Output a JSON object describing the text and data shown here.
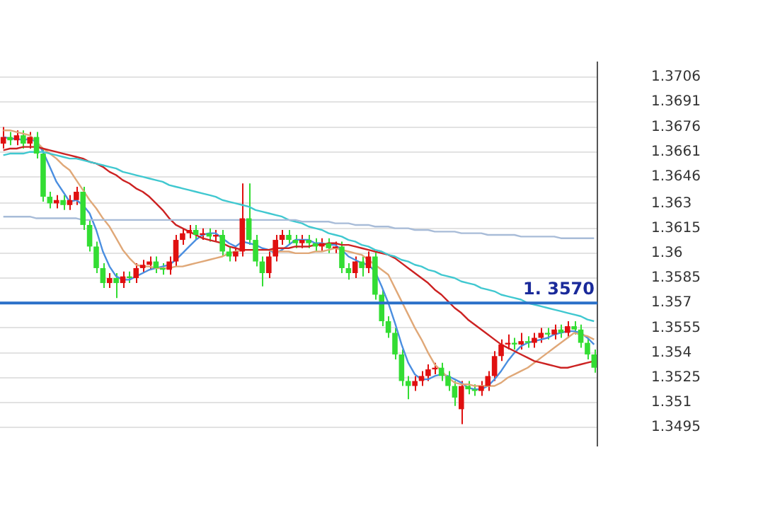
{
  "chart_data": {
    "type": "candlestick",
    "categories": [
      null,
      null,
      null,
      null,
      null,
      null,
      null,
      null,
      null,
      null,
      null,
      null,
      null,
      null,
      null,
      null,
      null,
      null,
      null,
      null,
      null,
      null,
      null,
      null,
      null,
      null,
      null,
      null,
      null,
      null,
      null,
      null,
      null,
      null,
      null,
      null,
      null,
      null,
      null,
      null,
      null,
      null,
      null,
      null,
      null,
      null,
      null,
      null,
      null,
      null,
      null,
      null,
      null,
      null,
      null,
      null,
      null,
      null,
      null,
      null,
      null,
      null,
      null,
      null,
      null,
      null,
      null,
      null,
      null,
      null,
      null,
      null,
      null,
      null,
      null,
      null,
      null,
      null,
      null,
      null,
      null,
      null,
      null,
      null,
      null,
      null,
      null,
      null,
      null,
      null
    ],
    "series": [
      {
        "type": "line",
        "color": "#a8bcd8",
        "values": [
          1.3622,
          1.3622,
          1.3622,
          1.3622,
          1.3622,
          1.3621,
          1.3621,
          1.3621,
          1.3621,
          1.3621,
          1.3621,
          1.3621,
          1.362,
          1.362,
          1.362,
          1.362,
          1.362,
          1.362,
          1.362,
          1.362,
          1.362,
          1.362,
          1.362,
          1.362,
          1.362,
          1.362,
          1.362,
          1.362,
          1.362,
          1.362,
          1.362,
          1.362,
          1.362,
          1.362,
          1.362,
          1.362,
          1.362,
          1.362,
          1.362,
          1.362,
          1.362,
          1.362,
          1.362,
          1.362,
          1.362,
          1.3619,
          1.3619,
          1.3619,
          1.3619,
          1.3619,
          1.3618,
          1.3618,
          1.3618,
          1.3617,
          1.3617,
          1.3617,
          1.3616,
          1.3616,
          1.3616,
          1.3615,
          1.3615,
          1.3615,
          1.3614,
          1.3614,
          1.3614,
          1.3613,
          1.3613,
          1.3613,
          1.3613,
          1.3612,
          1.3612,
          1.3612,
          1.3612,
          1.3611,
          1.3611,
          1.3611,
          1.3611,
          1.3611,
          1.361,
          1.361,
          1.361,
          1.361,
          1.361,
          1.361,
          1.3609,
          1.3609,
          1.3609,
          1.3609,
          1.3609,
          1.3609
        ]
      },
      {
        "type": "line",
        "color": "#40c8d0",
        "values": [
          1.3659,
          1.366,
          1.366,
          1.366,
          1.3661,
          1.3661,
          1.3661,
          1.366,
          1.3659,
          1.3658,
          1.3657,
          1.3657,
          1.3656,
          1.3655,
          1.3654,
          1.3653,
          1.3652,
          1.3651,
          1.3649,
          1.3648,
          1.3647,
          1.3646,
          1.3645,
          1.3644,
          1.3643,
          1.3641,
          1.364,
          1.3639,
          1.3638,
          1.3637,
          1.3636,
          1.3635,
          1.3634,
          1.3632,
          1.3631,
          1.363,
          1.3629,
          1.3628,
          1.3626,
          1.3625,
          1.3624,
          1.3623,
          1.3622,
          1.362,
          1.3619,
          1.3618,
          1.3616,
          1.3615,
          1.3614,
          1.3612,
          1.3611,
          1.361,
          1.3608,
          1.3607,
          1.3605,
          1.3604,
          1.3602,
          1.3601,
          1.3599,
          1.3598,
          1.3596,
          1.3595,
          1.3593,
          1.3592,
          1.359,
          1.3589,
          1.3587,
          1.3586,
          1.3585,
          1.3583,
          1.3582,
          1.3581,
          1.3579,
          1.3578,
          1.3577,
          1.3575,
          1.3574,
          1.3573,
          1.3572,
          1.357,
          1.3569,
          1.3568,
          1.3567,
          1.3566,
          1.3565,
          1.3564,
          1.3563,
          1.3562,
          1.356,
          1.3559
        ]
      },
      {
        "type": "line",
        "color": "#cc2222",
        "values": [
          1.3662,
          1.3663,
          1.3663,
          1.3664,
          1.3664,
          1.3664,
          1.3663,
          1.3662,
          1.3661,
          1.366,
          1.3659,
          1.3658,
          1.3657,
          1.3655,
          1.3654,
          1.3652,
          1.3649,
          1.3647,
          1.3644,
          1.3642,
          1.3639,
          1.3637,
          1.3634,
          1.363,
          1.3626,
          1.3621,
          1.3617,
          1.3615,
          1.3613,
          1.3611,
          1.3609,
          1.3608,
          1.3607,
          1.3606,
          1.3604,
          1.3603,
          1.3602,
          1.3602,
          1.3602,
          1.3602,
          1.3602,
          1.3603,
          1.3603,
          1.3603,
          1.3604,
          1.3604,
          1.3604,
          1.3605,
          1.3605,
          1.3606,
          1.3606,
          1.3605,
          1.3605,
          1.3604,
          1.3603,
          1.3602,
          1.3601,
          1.36,
          1.3599,
          1.3597,
          1.3594,
          1.3591,
          1.3588,
          1.3585,
          1.3582,
          1.3578,
          1.3575,
          1.3571,
          1.3567,
          1.3564,
          1.356,
          1.3557,
          1.3554,
          1.3551,
          1.3548,
          1.3545,
          1.3543,
          1.3541,
          1.3539,
          1.3537,
          1.3535,
          1.3534,
          1.3533,
          1.3532,
          1.3531,
          1.3531,
          1.3532,
          1.3533,
          1.3534,
          1.3535
        ]
      },
      {
        "type": "line",
        "color": "#e0a878",
        "values": [
          1.3674,
          1.3674,
          1.3673,
          1.3672,
          1.3671,
          1.3667,
          1.3663,
          1.366,
          1.3657,
          1.3653,
          1.365,
          1.3644,
          1.3638,
          1.3632,
          1.3627,
          1.3621,
          1.3616,
          1.3609,
          1.3602,
          1.3597,
          1.3593,
          1.3592,
          1.3592,
          1.3591,
          1.3591,
          1.3591,
          1.3592,
          1.3592,
          1.3593,
          1.3594,
          1.3595,
          1.3596,
          1.3597,
          1.3598,
          1.36,
          1.3601,
          1.3602,
          1.3602,
          1.3602,
          1.3602,
          1.3602,
          1.3601,
          1.3601,
          1.3601,
          1.36,
          1.36,
          1.36,
          1.3601,
          1.3601,
          1.3602,
          1.3603,
          1.3602,
          1.3601,
          1.36,
          1.3599,
          1.3596,
          1.3593,
          1.359,
          1.3587,
          1.3579,
          1.3571,
          1.3563,
          1.3555,
          1.3548,
          1.354,
          1.3533,
          1.3529,
          1.3525,
          1.3522,
          1.3521,
          1.3521,
          1.352,
          1.352,
          1.352,
          1.352,
          1.3522,
          1.3525,
          1.3527,
          1.3529,
          1.3531,
          1.3534,
          1.3537,
          1.354,
          1.3543,
          1.3546,
          1.3549,
          1.3552,
          1.3551,
          1.355,
          1.3548
        ]
      },
      {
        "type": "line",
        "color": "#4a8ee0",
        "values": [
          1.367,
          1.3669,
          1.3669,
          1.3668,
          1.3669,
          1.3667,
          1.3661,
          1.3652,
          1.3643,
          1.3637,
          1.3631,
          1.3632,
          1.3629,
          1.3624,
          1.3614,
          1.3601,
          1.3592,
          1.3586,
          1.3584,
          1.3584,
          1.3586,
          1.3588,
          1.359,
          1.3591,
          1.3592,
          1.3593,
          1.3596,
          1.36,
          1.3604,
          1.3608,
          1.3611,
          1.3612,
          1.3612,
          1.3609,
          1.3606,
          1.3604,
          1.3607,
          1.3606,
          1.3605,
          1.3603,
          1.3602,
          1.36,
          1.3602,
          1.3605,
          1.3608,
          1.3608,
          1.3608,
          1.3606,
          1.3606,
          1.3605,
          1.3605,
          1.3602,
          1.3598,
          1.3596,
          1.3594,
          1.3593,
          1.3589,
          1.358,
          1.357,
          1.3558,
          1.3545,
          1.3534,
          1.3527,
          1.3524,
          1.3524,
          1.3526,
          1.3527,
          1.3526,
          1.3524,
          1.3522,
          1.3519,
          1.3518,
          1.3518,
          1.352,
          1.3524,
          1.3529,
          1.3535,
          1.354,
          1.3544,
          1.3546,
          1.3547,
          1.3548,
          1.3549,
          1.3551,
          1.3552,
          1.3553,
          1.3553,
          1.3552,
          1.3549,
          1.3545
        ]
      },
      {
        "type": "candlestick",
        "ohlc": [
          [
            1.3666,
            1.3676,
            1.3663,
            1.367
          ],
          [
            1.367,
            1.3673,
            1.3665,
            1.3668
          ],
          [
            1.3668,
            1.3674,
            1.3665,
            1.3671
          ],
          [
            1.3671,
            1.3674,
            1.3663,
            1.3666
          ],
          [
            1.3666,
            1.3673,
            1.3663,
            1.367
          ],
          [
            1.367,
            1.3673,
            1.3657,
            1.366
          ],
          [
            1.366,
            1.3663,
            1.3631,
            1.3634
          ],
          [
            1.3634,
            1.3637,
            1.3627,
            1.363
          ],
          [
            1.363,
            1.3635,
            1.3627,
            1.3632
          ],
          [
            1.3632,
            1.3635,
            1.3626,
            1.3629
          ],
          [
            1.3629,
            1.3635,
            1.3626,
            1.3632
          ],
          [
            1.3632,
            1.364,
            1.3629,
            1.3637
          ],
          [
            1.3637,
            1.364,
            1.3614,
            1.3617
          ],
          [
            1.3617,
            1.362,
            1.3601,
            1.3604
          ],
          [
            1.3604,
            1.3607,
            1.3588,
            1.3591
          ],
          [
            1.3591,
            1.3594,
            1.3579,
            1.3582
          ],
          [
            1.3582,
            1.3588,
            1.3579,
            1.3585
          ],
          [
            1.3585,
            1.3588,
            1.3573,
            1.3582
          ],
          [
            1.3582,
            1.3589,
            1.3579,
            1.3586
          ],
          [
            1.3586,
            1.3589,
            1.3582,
            1.3585
          ],
          [
            1.3585,
            1.3594,
            1.3582,
            1.3591
          ],
          [
            1.3591,
            1.3596,
            1.3588,
            1.3593
          ],
          [
            1.3593,
            1.3598,
            1.359,
            1.3595
          ],
          [
            1.3595,
            1.3598,
            1.3588,
            1.3591
          ],
          [
            1.3591,
            1.3594,
            1.3587,
            1.359
          ],
          [
            1.359,
            1.3598,
            1.3587,
            1.3595
          ],
          [
            1.3595,
            1.3611,
            1.3592,
            1.3608
          ],
          [
            1.3608,
            1.3615,
            1.3605,
            1.3612
          ],
          [
            1.3612,
            1.3617,
            1.3609,
            1.3614
          ],
          [
            1.3614,
            1.3617,
            1.3608,
            1.3611
          ],
          [
            1.3611,
            1.3615,
            1.3608,
            1.3612
          ],
          [
            1.3612,
            1.3615,
            1.3607,
            1.361
          ],
          [
            1.361,
            1.3614,
            1.3607,
            1.3611
          ],
          [
            1.3611,
            1.3614,
            1.3598,
            1.3601
          ],
          [
            1.3601,
            1.3604,
            1.3595,
            1.3598
          ],
          [
            1.3598,
            1.3604,
            1.3595,
            1.3601
          ],
          [
            1.3601,
            1.3642,
            1.3598,
            1.3621
          ],
          [
            1.3621,
            1.3642,
            1.3605,
            1.3608
          ],
          [
            1.3608,
            1.3611,
            1.3592,
            1.3595
          ],
          [
            1.3595,
            1.3598,
            1.358,
            1.3588
          ],
          [
            1.3588,
            1.3601,
            1.3585,
            1.3598
          ],
          [
            1.3598,
            1.3611,
            1.3595,
            1.3608
          ],
          [
            1.3608,
            1.3614,
            1.3605,
            1.3611
          ],
          [
            1.3611,
            1.3614,
            1.3605,
            1.3608
          ],
          [
            1.3608,
            1.3611,
            1.3603,
            1.3606
          ],
          [
            1.3606,
            1.3611,
            1.3603,
            1.3608
          ],
          [
            1.3608,
            1.3611,
            1.3603,
            1.3606
          ],
          [
            1.3606,
            1.3609,
            1.3601,
            1.3604
          ],
          [
            1.3604,
            1.3609,
            1.3601,
            1.3606
          ],
          [
            1.3606,
            1.3609,
            1.36,
            1.3603
          ],
          [
            1.3603,
            1.3607,
            1.36,
            1.3604
          ],
          [
            1.3604,
            1.3607,
            1.3588,
            1.3591
          ],
          [
            1.3591,
            1.3594,
            1.3584,
            1.3588
          ],
          [
            1.3588,
            1.3598,
            1.3585,
            1.3595
          ],
          [
            1.3595,
            1.3598,
            1.3586,
            1.3591
          ],
          [
            1.3591,
            1.3601,
            1.3588,
            1.3598
          ],
          [
            1.3598,
            1.3601,
            1.3572,
            1.3575
          ],
          [
            1.3575,
            1.3578,
            1.3556,
            1.3559
          ],
          [
            1.3559,
            1.3562,
            1.3549,
            1.3552
          ],
          [
            1.3552,
            1.3555,
            1.3536,
            1.3539
          ],
          [
            1.3539,
            1.3542,
            1.352,
            1.3523
          ],
          [
            1.3523,
            1.3526,
            1.3512,
            1.352
          ],
          [
            1.352,
            1.3526,
            1.3517,
            1.3523
          ],
          [
            1.3523,
            1.3529,
            1.352,
            1.3526
          ],
          [
            1.3526,
            1.3533,
            1.3523,
            1.353
          ],
          [
            1.353,
            1.3534,
            1.3527,
            1.3531
          ],
          [
            1.3531,
            1.3534,
            1.3523,
            1.3526
          ],
          [
            1.3526,
            1.3529,
            1.3517,
            1.352
          ],
          [
            1.352,
            1.3523,
            1.3508,
            1.3513
          ],
          [
            1.3506,
            1.3523,
            1.3497,
            1.352
          ],
          [
            1.352,
            1.3523,
            1.3515,
            1.3518
          ],
          [
            1.3518,
            1.3521,
            1.3514,
            1.3517
          ],
          [
            1.3517,
            1.3523,
            1.3514,
            1.352
          ],
          [
            1.352,
            1.3529,
            1.3517,
            1.3526
          ],
          [
            1.3526,
            1.3541,
            1.3523,
            1.3538
          ],
          [
            1.3538,
            1.3548,
            1.3535,
            1.3545
          ],
          [
            1.3545,
            1.3551,
            1.3542,
            1.3546
          ],
          [
            1.3546,
            1.3549,
            1.3542,
            1.3545
          ],
          [
            1.3545,
            1.3552,
            1.3542,
            1.3547
          ],
          [
            1.3547,
            1.355,
            1.3543,
            1.3546
          ],
          [
            1.3546,
            1.3552,
            1.3543,
            1.3549
          ],
          [
            1.3549,
            1.3555,
            1.3546,
            1.3552
          ],
          [
            1.3552,
            1.3555,
            1.3548,
            1.3551
          ],
          [
            1.3551,
            1.3557,
            1.3548,
            1.3554
          ],
          [
            1.3554,
            1.3557,
            1.3549,
            1.3552
          ],
          [
            1.3552,
            1.3559,
            1.3549,
            1.3556
          ],
          [
            1.3556,
            1.3559,
            1.3551,
            1.3554
          ],
          [
            1.3554,
            1.3557,
            1.3543,
            1.3546
          ],
          [
            1.3546,
            1.3549,
            1.3536,
            1.3539
          ],
          [
            1.3539,
            1.3542,
            1.3528,
            1.3531
          ]
        ],
        "colors": [
          "#e01010",
          "#33dd33",
          "#e01010",
          "#33dd33",
          "#e01010",
          "#33dd33",
          "#33dd33",
          "#33dd33",
          "#e01010",
          "#33dd33",
          "#e01010",
          "#e01010",
          "#33dd33",
          "#33dd33",
          "#33dd33",
          "#33dd33",
          "#e01010",
          "#33dd33",
          "#e01010",
          "#33dd33",
          "#e01010",
          "#e01010",
          "#e01010",
          "#33dd33",
          "#33dd33",
          "#e01010",
          "#e01010",
          "#e01010",
          "#e01010",
          "#33dd33",
          "#e01010",
          "#33dd33",
          "#e01010",
          "#33dd33",
          "#33dd33",
          "#e01010",
          "#e01010",
          "#33dd33",
          "#33dd33",
          "#33dd33",
          "#e01010",
          "#e01010",
          "#e01010",
          "#33dd33",
          "#33dd33",
          "#e01010",
          "#33dd33",
          "#33dd33",
          "#e01010",
          "#33dd33",
          "#e01010",
          "#33dd33",
          "#33dd33",
          "#e01010",
          "#33dd33",
          "#e01010",
          "#33dd33",
          "#33dd33",
          "#33dd33",
          "#33dd33",
          "#33dd33",
          "#33dd33",
          "#e01010",
          "#e01010",
          "#e01010",
          "#e01010",
          "#33dd33",
          "#33dd33",
          "#33dd33",
          "#e01010",
          "#33dd33",
          "#33dd33",
          "#e01010",
          "#e01010",
          "#e01010",
          "#e01010",
          "#e01010",
          "#33dd33",
          "#e01010",
          "#33dd33",
          "#e01010",
          "#e01010",
          "#33dd33",
          "#e01010",
          "#33dd33",
          "#e01010",
          "#33dd33",
          "#33dd33",
          "#33dd33",
          "#33dd33"
        ]
      }
    ],
    "ylim": [
      1.3484,
      1.3715
    ],
    "yticks": [
      1.3706,
      1.3691,
      1.3676,
      1.3661,
      1.3646,
      1.363,
      1.3615,
      1.36,
      1.3585,
      1.357,
      1.3555,
      1.354,
      1.3525,
      1.351,
      1.3495
    ],
    "grid": "y",
    "legend": false,
    "marker": "none",
    "line_style": "solid",
    "ref_lines": [
      {
        "axis": "y",
        "value": 1.357,
        "label": "1. 3570",
        "color": "#2a70c8"
      }
    ]
  }
}
